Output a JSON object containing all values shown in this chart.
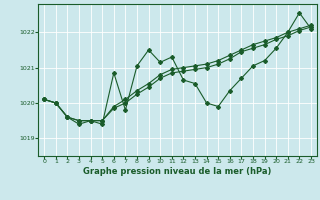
{
  "title": "Graphe pression niveau de la mer (hPa)",
  "bg_color": "#cce8ec",
  "line_color": "#1a5c2a",
  "grid_color": "#ffffff",
  "xlim": [
    -0.5,
    23.5
  ],
  "ylim": [
    1018.5,
    1022.8
  ],
  "yticks": [
    1019,
    1020,
    1021,
    1022
  ],
  "xticks": [
    0,
    1,
    2,
    3,
    4,
    5,
    6,
    7,
    8,
    9,
    10,
    11,
    12,
    13,
    14,
    15,
    16,
    17,
    18,
    19,
    20,
    21,
    22,
    23
  ],
  "line1": [
    1020.1,
    1020.0,
    1019.6,
    1019.4,
    1019.5,
    1019.4,
    1020.85,
    1019.8,
    1021.05,
    1021.5,
    1021.15,
    1021.3,
    1020.65,
    1020.55,
    1020.0,
    1019.9,
    1020.35,
    1020.7,
    1021.05,
    1021.2,
    1021.55,
    1022.0,
    1022.55,
    1022.1
  ],
  "line2": [
    1020.1,
    1020.0,
    1019.6,
    1019.5,
    1019.5,
    1019.5,
    1019.9,
    1020.1,
    1020.35,
    1020.55,
    1020.8,
    1020.95,
    1021.0,
    1021.05,
    1021.1,
    1021.2,
    1021.35,
    1021.5,
    1021.65,
    1021.75,
    1021.85,
    1022.0,
    1022.1,
    1022.2
  ],
  "line3": [
    1020.1,
    1020.0,
    1019.6,
    1019.5,
    1019.5,
    1019.5,
    1019.85,
    1020.0,
    1020.25,
    1020.45,
    1020.7,
    1020.85,
    1020.9,
    1020.95,
    1021.0,
    1021.1,
    1021.25,
    1021.45,
    1021.55,
    1021.65,
    1021.8,
    1021.9,
    1022.05,
    1022.15
  ]
}
